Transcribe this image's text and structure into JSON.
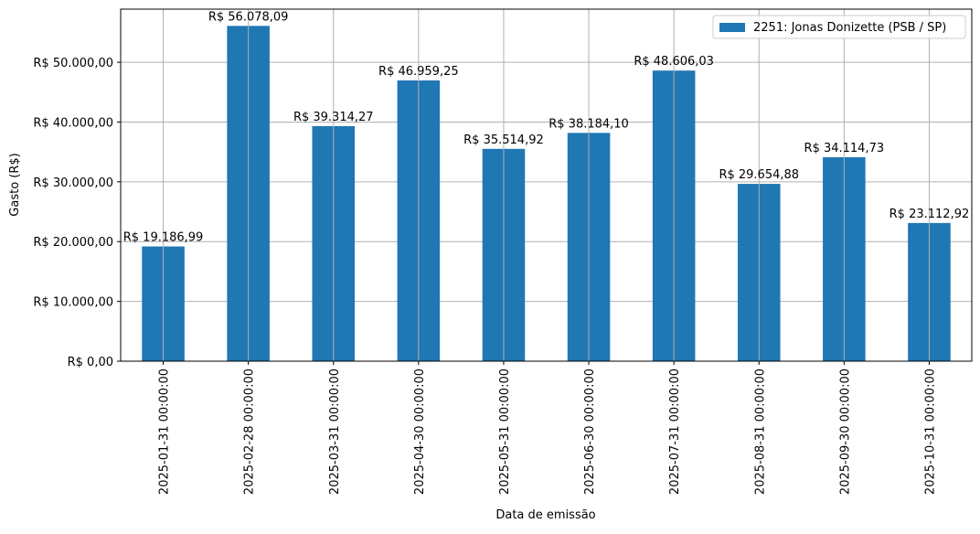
{
  "chart_data": {
    "type": "bar",
    "xlabel": "Data de emissão",
    "ylabel": "Gasto (R$)",
    "categories": [
      "2025-01-31 00:00:00",
      "2025-02-28 00:00:00",
      "2025-03-31 00:00:00",
      "2025-04-30 00:00:00",
      "2025-05-31 00:00:00",
      "2025-06-30 00:00:00",
      "2025-07-31 00:00:00",
      "2025-08-31 00:00:00",
      "2025-09-30 00:00:00",
      "2025-10-31 00:00:00"
    ],
    "series": [
      {
        "name": "2251: Jonas Donizette (PSB / SP)",
        "color": "#1f77b4",
        "values": [
          19186.99,
          56078.09,
          39314.27,
          46959.25,
          35514.92,
          38184.1,
          48606.03,
          29654.88,
          34114.73,
          23112.92
        ]
      }
    ],
    "data_labels": [
      "R$ 19.186,99",
      "R$ 56.078,09",
      "R$ 39.314,27",
      "R$ 46.959,25",
      "R$ 35.514,92",
      "R$ 38.184,10",
      "R$ 48.606,03",
      "R$ 29.654,88",
      "R$ 34.114,73",
      "R$ 23.112,92"
    ],
    "yticks": [
      0,
      10000,
      20000,
      30000,
      40000,
      50000
    ],
    "ytick_labels": [
      "R$ 0,00",
      "R$ 10.000,00",
      "R$ 20.000,00",
      "R$ 30.000,00",
      "R$ 40.000,00",
      "R$ 50.000,00"
    ],
    "ylim": [
      0,
      58882
    ],
    "grid": true,
    "legend_position": "top-right"
  }
}
